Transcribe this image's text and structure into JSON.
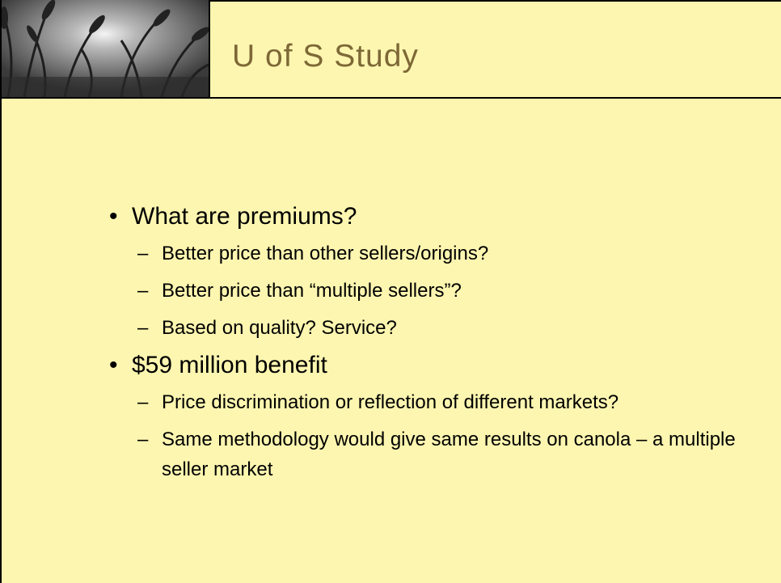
{
  "header": {
    "title": "U of S Study"
  },
  "bullets": [
    {
      "text": "What are premiums?",
      "sub": [
        "Better price than other sellers/origins?",
        "Better price than “multiple sellers”?",
        "Based on quality? Service?"
      ]
    },
    {
      "text": "$59 million benefit",
      "sub": [
        "Price discrimination or reflection of different markets?",
        "Same methodology would give same results on canola – a multiple seller market"
      ]
    }
  ]
}
